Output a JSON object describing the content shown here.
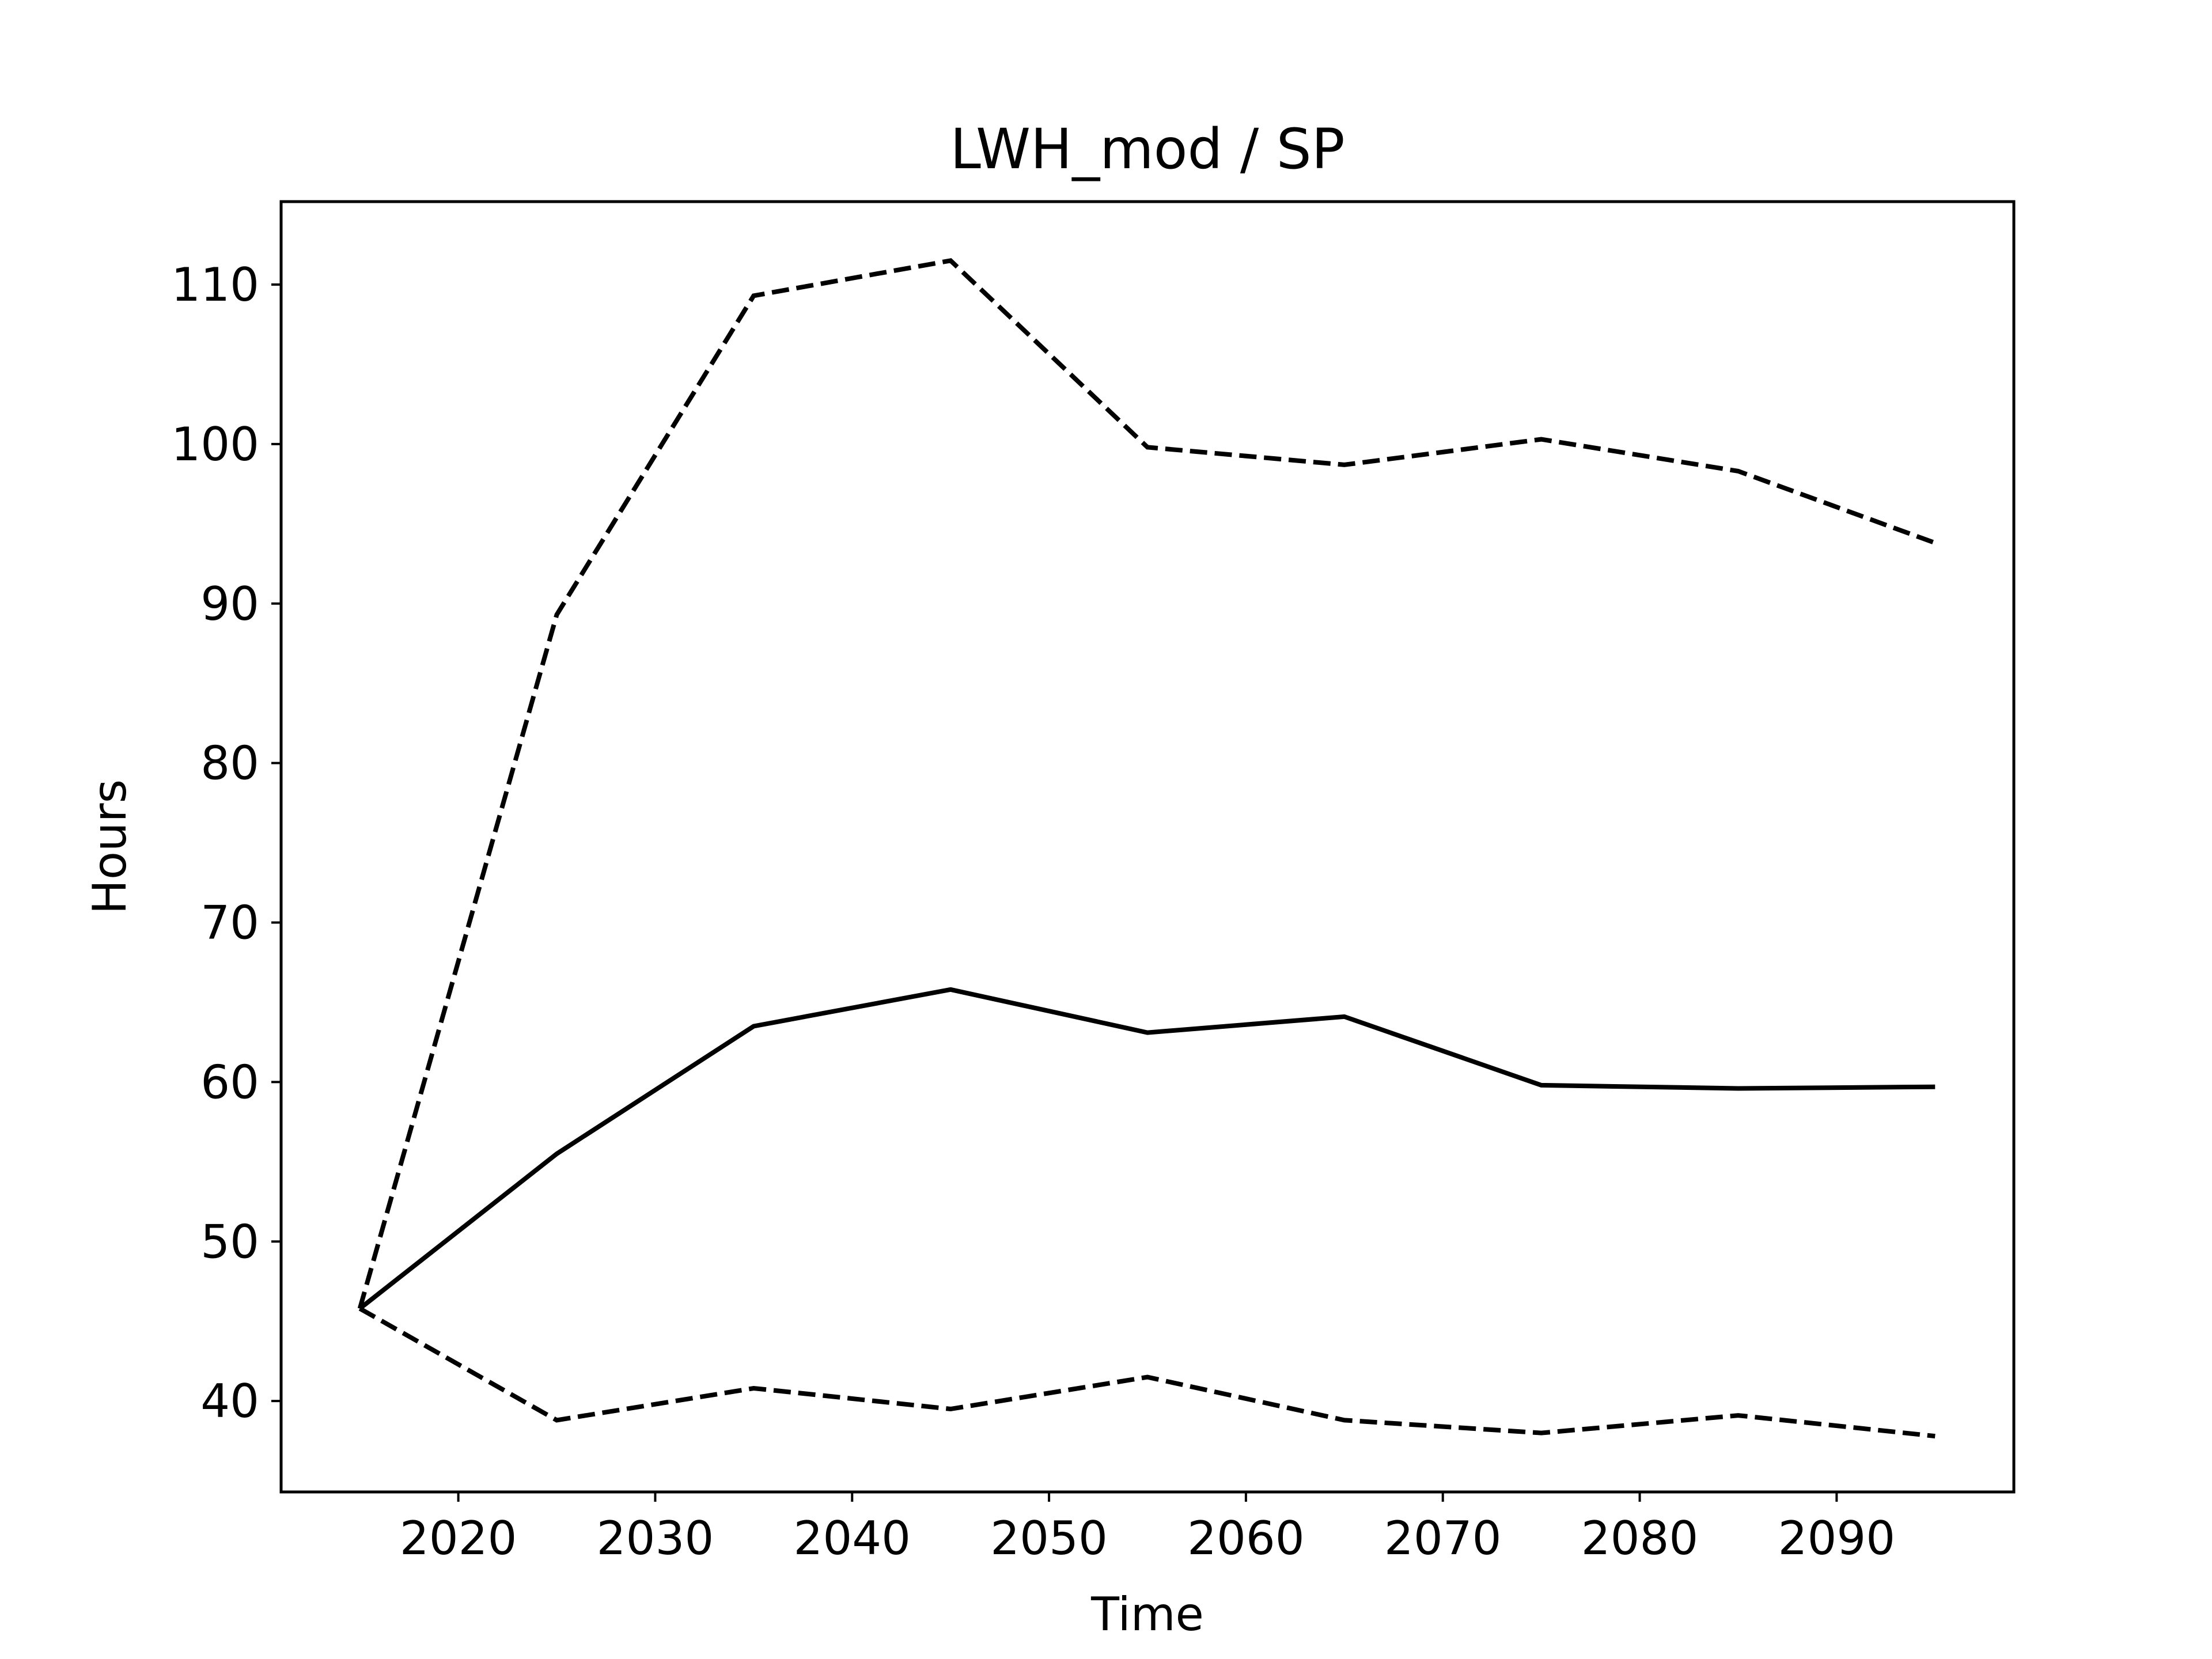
{
  "chart_data": {
    "type": "line",
    "title": "LWH_mod / SP",
    "xlabel": "Time",
    "ylabel": "Hours",
    "xlim": [
      2011,
      2099
    ],
    "ylim": [
      34.3,
      115.2
    ],
    "xticks": [
      2020,
      2030,
      2040,
      2050,
      2060,
      2070,
      2080,
      2090
    ],
    "yticks": [
      40,
      50,
      60,
      70,
      80,
      90,
      100,
      110
    ],
    "grid": false,
    "x": [
      2015,
      2025,
      2035,
      2045,
      2055,
      2065,
      2075,
      2085,
      2095
    ],
    "series": [
      {
        "values": [
          45.8,
          55.5,
          63.5,
          65.8,
          63.1,
          64.1,
          59.8,
          59.6,
          59.7
        ],
        "line_style": "solid",
        "color": "#000000"
      },
      {
        "values": [
          45.8,
          89.3,
          109.3,
          111.5,
          99.8,
          98.7,
          100.3,
          98.3,
          93.8
        ],
        "line_style": "dashed",
        "color": "#000000"
      },
      {
        "values": [
          45.8,
          38.8,
          40.8,
          39.5,
          41.5,
          38.8,
          38.0,
          39.1,
          37.8
        ],
        "line_style": "dashed",
        "color": "#000000"
      }
    ]
  }
}
